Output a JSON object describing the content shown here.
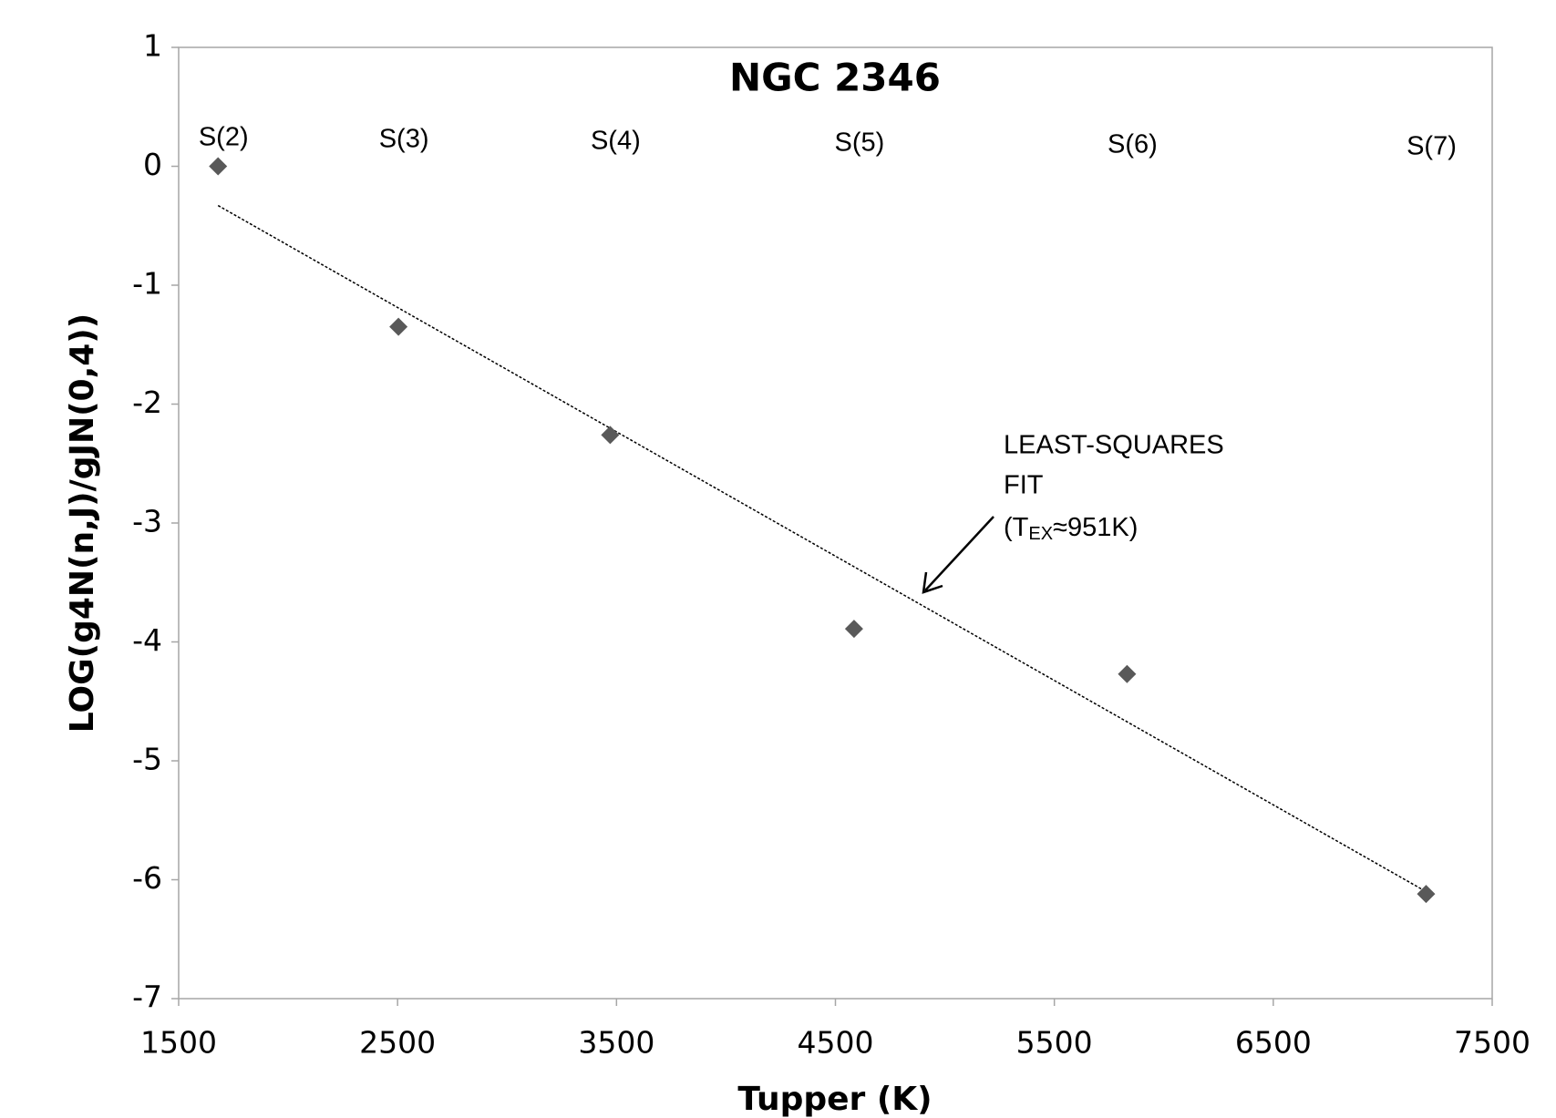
{
  "chart_data": {
    "type": "scatter",
    "title": "NGC 2346",
    "x_label": "Tupper (K)",
    "y_label": "LOG(g4N(n,J)/gJN(0,4))",
    "x": [
      1680,
      2504,
      3471,
      4585,
      5832,
      7198
    ],
    "series": [
      {
        "color": "#595959",
        "values": [
          0,
          -1.35,
          -2.26,
          -3.89,
          -4.27,
          -6.12
        ]
      }
    ],
    "point_labels": [
      "S(2)",
      "S(3)",
      "S(4)",
      "S(5)",
      "S(6)",
      "S(7)"
    ],
    "fit": {
      "x": [
        1680,
        7198
      ],
      "values": [
        -0.33,
        -6.1
      ],
      "color": "#000000"
    },
    "annotation": {
      "lines": [
        "LEAST-SQUARES",
        "FIT"
      ],
      "prefix": "(T",
      "subscript": "EX",
      "suffix": "≈951K)"
    },
    "xlim": [
      1500,
      7500
    ],
    "xticks": [
      1500,
      2500,
      3500,
      4500,
      5500,
      6500,
      7500
    ],
    "ylim": [
      -7,
      1
    ],
    "yticks": [
      -7,
      -6,
      -5,
      -4,
      -3,
      -2,
      -1,
      0,
      1
    ],
    "grid": false
  }
}
